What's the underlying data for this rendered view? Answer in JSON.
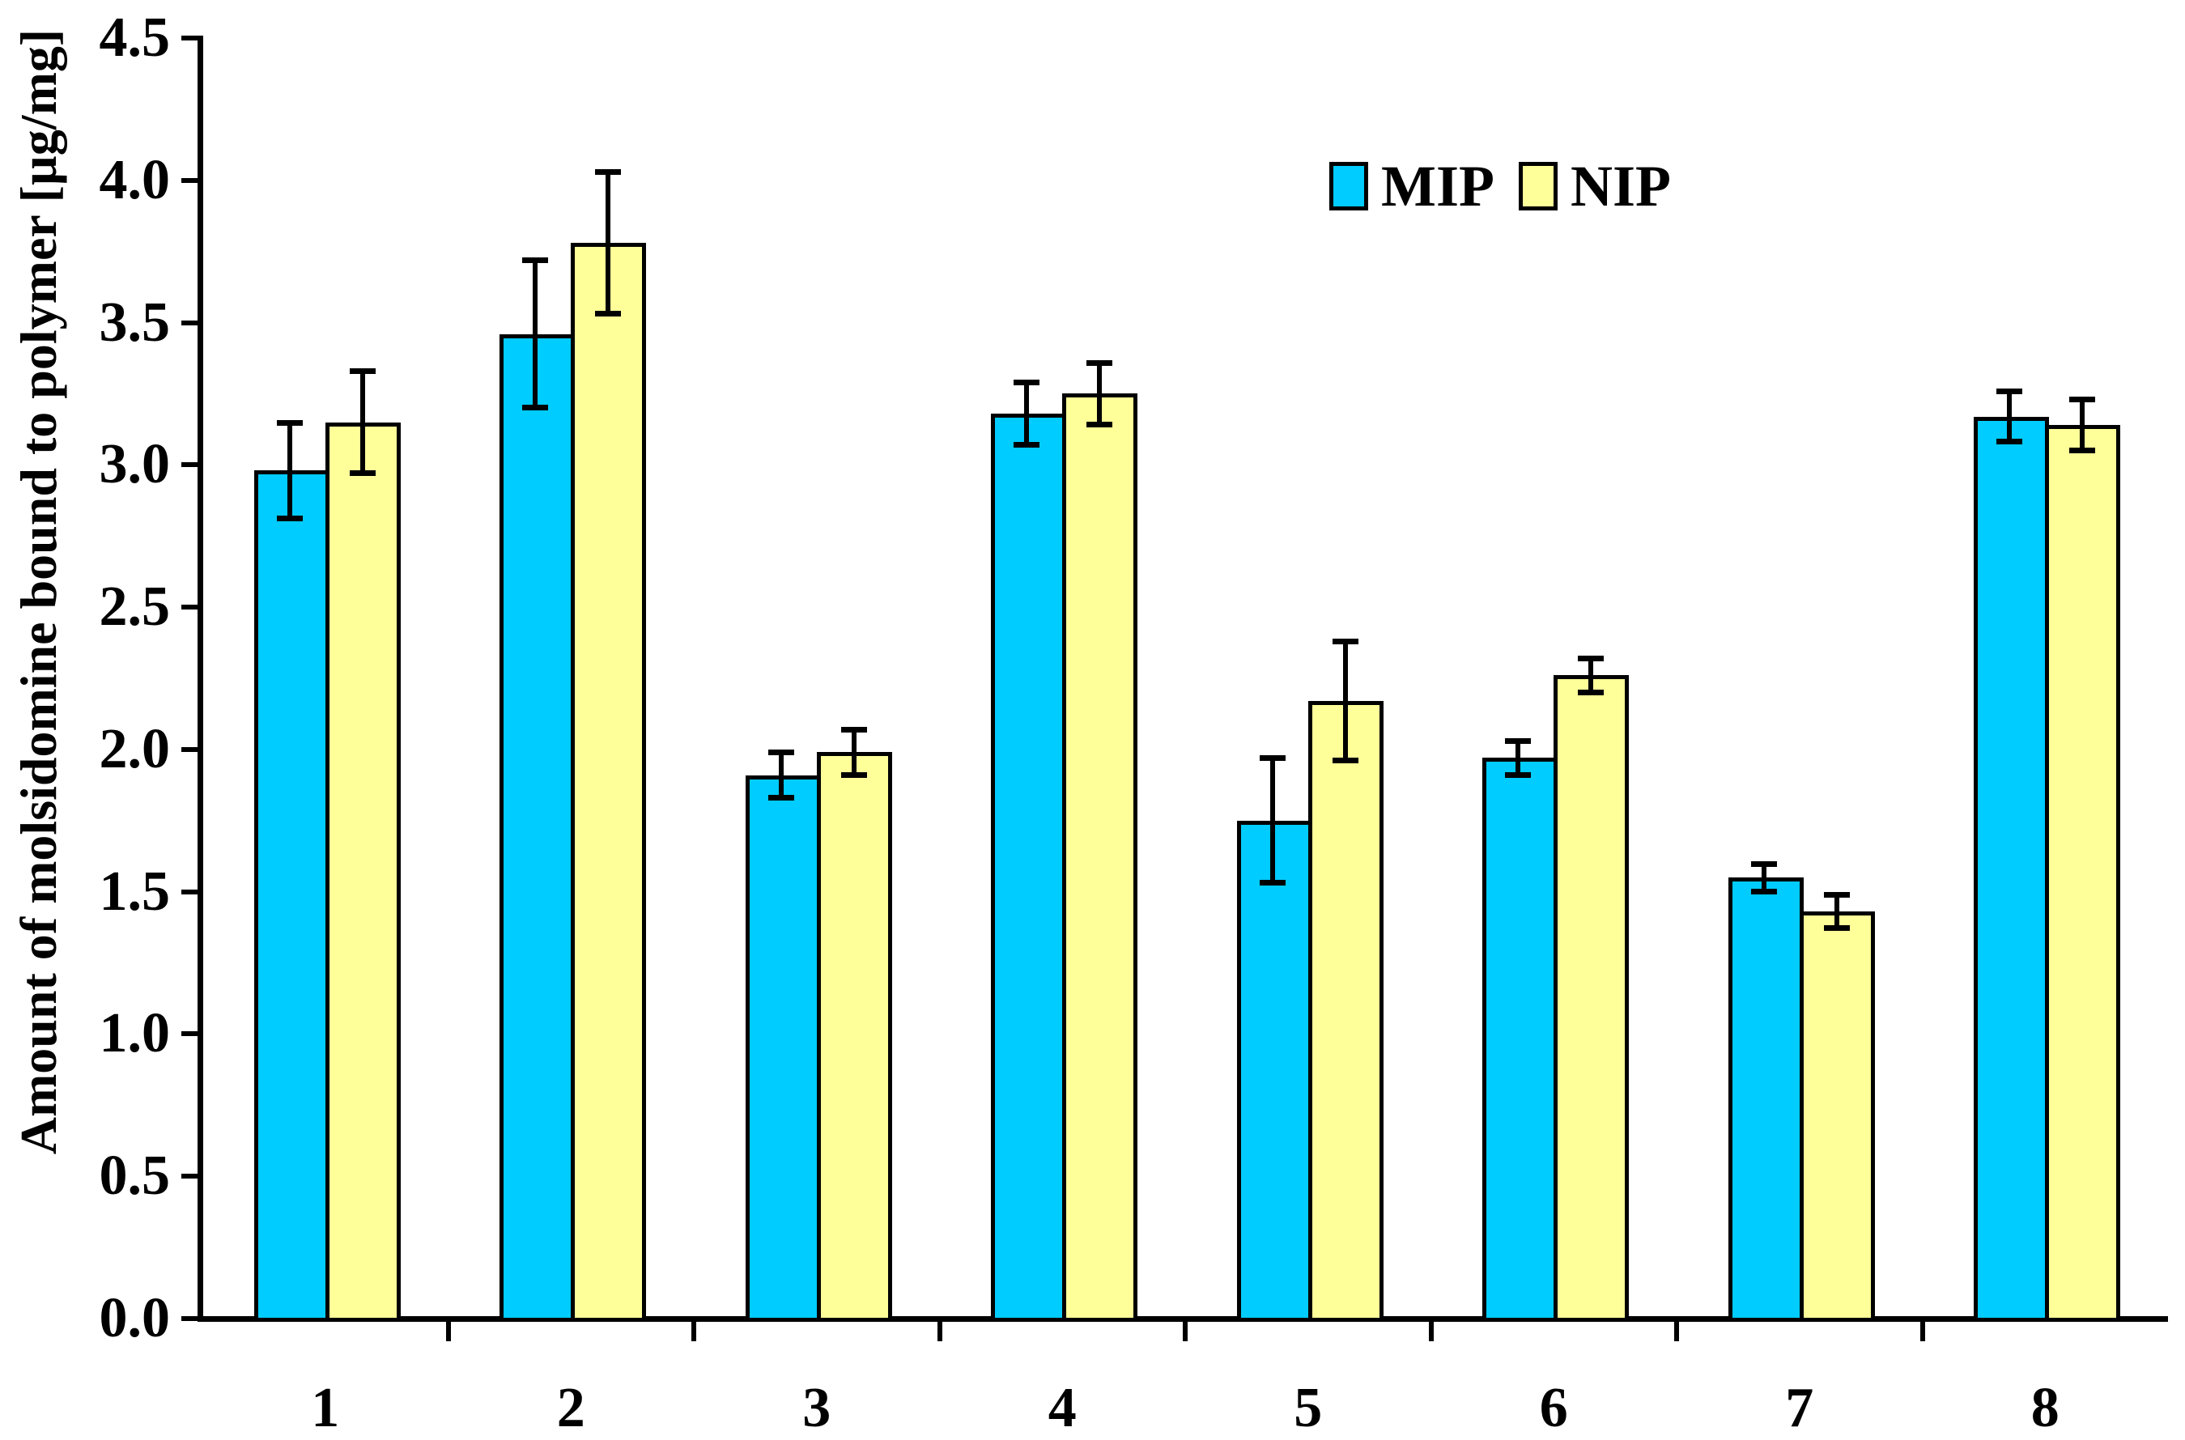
{
  "chart_data": {
    "type": "bar",
    "title": "",
    "xlabel": "",
    "ylabel": "Amount of molsidomine bound to polymer [µg/mg]",
    "categories": [
      "1",
      "2",
      "3",
      "4",
      "5",
      "6",
      "7",
      "8"
    ],
    "y_ticks": [
      "4.5",
      "4.0",
      "3.5",
      "3.0",
      "2.5",
      "2.0",
      "1.5",
      "1.0",
      "0.5",
      "0.0"
    ],
    "ylim": [
      0.0,
      4.5
    ],
    "grid": false,
    "legend_position": "top-right-inside",
    "error_bars": true,
    "series": [
      {
        "name": "MIP",
        "color": "#00CCFF",
        "values": [
          2.98,
          3.46,
          1.91,
          3.18,
          1.75,
          1.97,
          1.55,
          3.17
        ],
        "errors": [
          0.17,
          0.26,
          0.08,
          0.11,
          0.22,
          0.06,
          0.05,
          0.09
        ]
      },
      {
        "name": "NIP",
        "color": "#FFFF99",
        "values": [
          3.15,
          3.78,
          1.99,
          3.25,
          2.17,
          2.26,
          1.43,
          3.14
        ],
        "errors": [
          0.18,
          0.25,
          0.08,
          0.11,
          0.21,
          0.06,
          0.06,
          0.09
        ]
      }
    ],
    "axis_color": "#000000",
    "background_color": "#FFFFFF"
  }
}
